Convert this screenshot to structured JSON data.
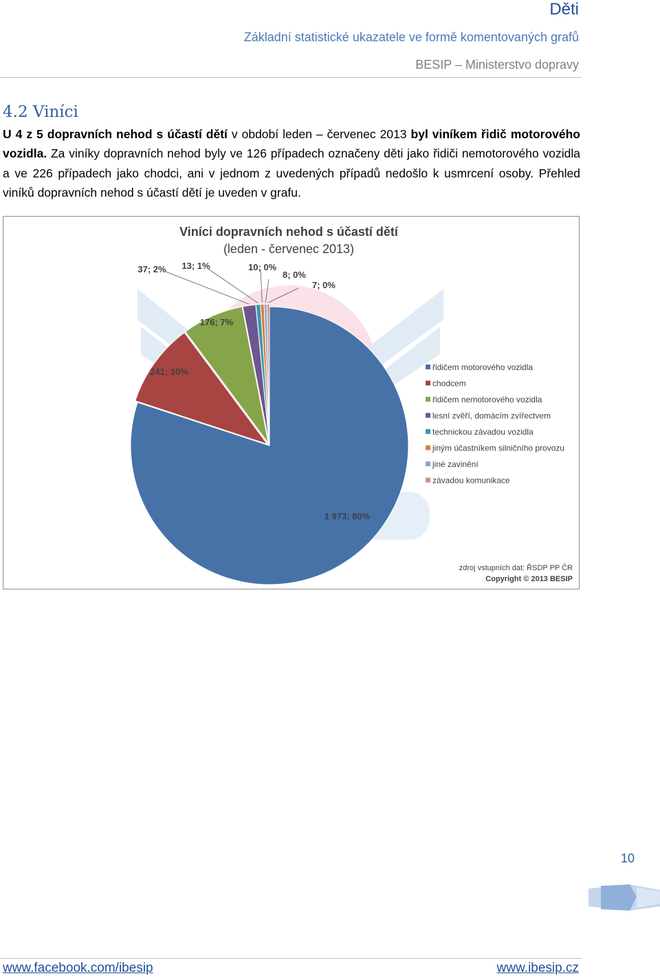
{
  "header": {
    "title": "Děti",
    "subtitle": "Základní statistické ukazatele ve formě komentovaných grafů",
    "org": "BESIP – Ministerstvo dopravy"
  },
  "section": {
    "heading": "4.2 Viníci",
    "paragraph": {
      "p1": "U 4 z 5 dopravních nehod s účastí dětí",
      "p2": " v období leden – červenec 2013 ",
      "p3": "byl viníkem řidič motorového vozidla.",
      "p4": " Za viníky dopravních nehod byly ve 126 případech označeny děti jako řidiči nemotorového vozidla a ve 226 případech jako chodci, ani v jednom z uvedených případů nedošlo k usmrcení osoby.",
      "p5": " Přehled viníků dopravních nehod s účastí dětí je uveden v grafu."
    }
  },
  "chart_data": {
    "type": "pie",
    "title": "Viníci dopravních nehod s účastí dětí",
    "subtitle": "(leden - červenec 2013)",
    "legend_position": "right",
    "slices": [
      {
        "name": "řidičem motorového vozidla",
        "value": 1973,
        "label": "1 973; 80%",
        "color": "#4672a8"
      },
      {
        "name": "chodcem",
        "value": 241,
        "label": "241; 10%",
        "color": "#a84442"
      },
      {
        "name": "řidičem nemotorového vozidla",
        "value": 176,
        "label": "176; 7%",
        "color": "#86a44a"
      },
      {
        "name": "lesní zvěří, domácím zvířectvem",
        "value": 37,
        "label": "37; 2%",
        "color": "#6e5690"
      },
      {
        "name": "technickou závadou vozidla",
        "value": 13,
        "label": "13; 1%",
        "color": "#3d96ae"
      },
      {
        "name": "jiným účastníkem silničního provozu",
        "value": 10,
        "label": "10; 0%",
        "color": "#da8137"
      },
      {
        "name": "jiné zavinění",
        "value": 8,
        "label": "8; 0%",
        "color": "#8ea5cb"
      },
      {
        "name": "závadou komunikace",
        "value": 7,
        "label": "7; 0%",
        "color": "#ce8e8d"
      }
    ],
    "source": "zdroj vstupních dat: ŘSDP PP ČR",
    "copyright": "Copyright © 2013  BESIP"
  },
  "page_number": "10",
  "footer": {
    "left": "www.facebook.com/ibesip",
    "right": "www.ibesip.cz"
  }
}
